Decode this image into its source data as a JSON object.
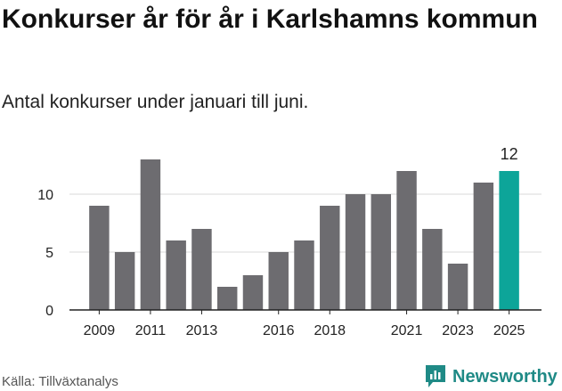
{
  "title": "Konkurser år för år i Karlshamns kommun",
  "subtitle": "Antal konkurser under januari till juni.",
  "source": "Källa: Tillväxtanalys",
  "brand": "Newsworthy",
  "colors": {
    "bar": "#6d6c70",
    "highlight": "#0da599",
    "grid": "#d9d9d9",
    "brand": "#1f8a86"
  },
  "chart_data": {
    "type": "bar",
    "categories": [
      "2009",
      "2010",
      "2011",
      "2012",
      "2013",
      "2014",
      "2015",
      "2016",
      "2017",
      "2018",
      "2019",
      "2020",
      "2021",
      "2022",
      "2023",
      "2024",
      "2025"
    ],
    "values": [
      9,
      5,
      13,
      6,
      7,
      2,
      3,
      5,
      6,
      9,
      10,
      10,
      12,
      7,
      4,
      11,
      12
    ],
    "tick_labels_x": [
      "2009",
      "2011",
      "2013",
      "2016",
      "2018",
      "2021",
      "2023",
      "2025"
    ],
    "yticks": [
      0,
      5,
      10
    ],
    "ylim": [
      0,
      13
    ],
    "highlight_category": "2025",
    "data_labels": [
      {
        "category": "2025",
        "text": "12"
      }
    ],
    "grid": true
  }
}
